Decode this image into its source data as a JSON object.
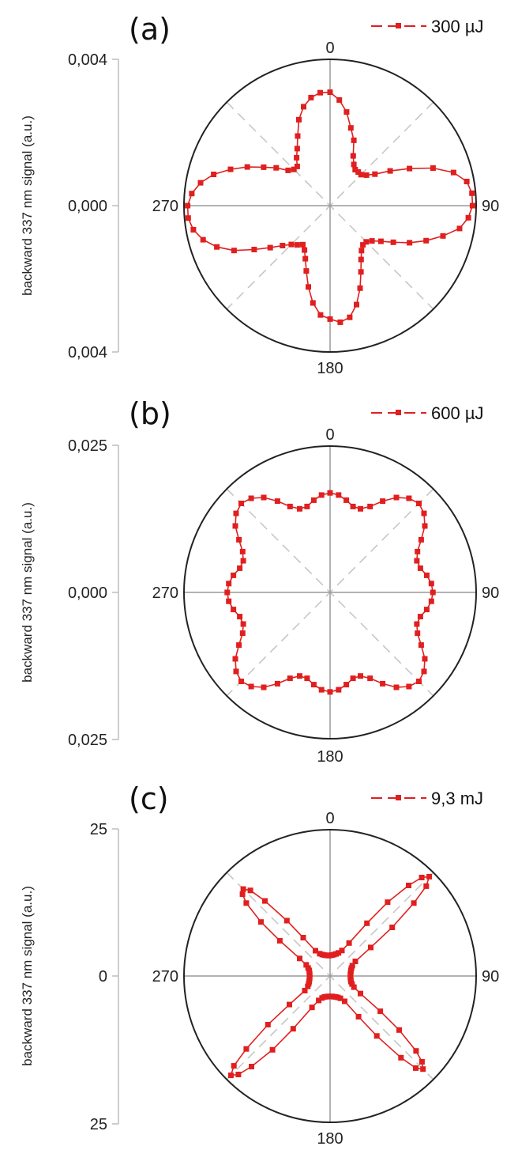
{
  "colors": {
    "series": "#e01f1f",
    "outer_circle": "#222222",
    "axis_cross": "#9a9a9a",
    "diagonal_dash": "#c4c4c4",
    "y_axis": "#bdbdbd"
  },
  "chart_data": [
    {
      "type": "polar-line",
      "panel": "(a)",
      "legend": "300 µJ",
      "angle_labels": [
        "0",
        "90",
        "180",
        "270"
      ],
      "ylabel": "backward 337 nm signal  (a.u.)",
      "yticks": [
        "0,004",
        "0,000",
        "0,004"
      ],
      "rmax": 0.004,
      "grid": true,
      "series": [
        {
          "name": "300 µJ",
          "theta_deg": [
            0,
            5,
            10,
            15,
            20,
            25,
            30,
            35,
            40,
            45,
            50,
            55,
            60,
            65,
            70,
            75,
            80,
            85,
            90,
            95,
            100,
            105,
            110,
            115,
            120,
            125,
            130,
            135,
            140,
            145,
            150,
            155,
            160,
            165,
            170,
            175,
            180,
            185,
            190,
            195,
            200,
            205,
            210,
            215,
            220,
            225,
            230,
            235,
            240,
            245,
            250,
            255,
            260,
            265,
            270,
            275,
            280,
            285,
            290,
            295,
            300,
            305,
            310,
            315,
            320,
            325,
            330,
            335,
            340,
            345,
            350,
            355
          ],
          "r": [
            0.0031,
            0.0029,
            0.0026,
            0.0022,
            0.0019,
            0.0015,
            0.0013,
            0.0012,
            0.0012,
            0.0012,
            0.0013,
            0.0015,
            0.0019,
            0.0024,
            0.003,
            0.0035,
            0.0038,
            0.0039,
            0.0039,
            0.0038,
            0.0036,
            0.0032,
            0.0028,
            0.0024,
            0.002,
            0.0017,
            0.0015,
            0.0014,
            0.0014,
            0.0015,
            0.0017,
            0.002,
            0.0024,
            0.0028,
            0.0031,
            0.0032,
            0.0031,
            0.003,
            0.0027,
            0.0023,
            0.0019,
            0.0016,
            0.0014,
            0.0013,
            0.0014,
            0.0015,
            0.0017,
            0.002,
            0.0024,
            0.0029,
            0.0033,
            0.0036,
            0.0038,
            0.0039,
            0.0039,
            0.0038,
            0.0036,
            0.0033,
            0.0029,
            0.0025,
            0.0021,
            0.0018,
            0.0015,
            0.0014,
            0.0014,
            0.0016,
            0.0018,
            0.0021,
            0.0025,
            0.0028,
            0.003,
            0.0031
          ]
        }
      ]
    },
    {
      "type": "polar-line",
      "panel": "(b)",
      "legend": "600 µJ",
      "angle_labels": [
        "0",
        "90",
        "180",
        "270"
      ],
      "ylabel": "backward 337 nm signal  (a.u.)",
      "yticks": [
        "0,025",
        "0,000",
        "0,025"
      ],
      "rmax": 0.025,
      "grid": true,
      "series": [
        {
          "name": "600 µJ",
          "theta_deg": [
            0,
            5,
            10,
            15,
            20,
            25,
            30,
            35,
            40,
            45,
            50,
            55,
            60,
            65,
            70,
            75,
            80,
            85,
            90,
            95,
            100,
            105,
            110,
            115,
            120,
            125,
            130,
            135,
            140,
            145,
            150,
            155,
            160,
            165,
            170,
            175,
            180,
            185,
            190,
            195,
            200,
            205,
            210,
            215,
            220,
            225,
            230,
            235,
            240,
            245,
            250,
            255,
            260,
            265,
            270,
            275,
            280,
            285,
            290,
            295,
            300,
            305,
            310,
            315,
            320,
            325,
            330,
            335,
            340,
            345,
            350,
            355
          ],
          "r": [
            0.017,
            0.0167,
            0.016,
            0.0152,
            0.0152,
            0.0162,
            0.018,
            0.0198,
            0.021,
            0.0215,
            0.021,
            0.0198,
            0.018,
            0.0165,
            0.0158,
            0.016,
            0.0168,
            0.0174,
            0.0176,
            0.0174,
            0.0168,
            0.016,
            0.0158,
            0.0165,
            0.018,
            0.0198,
            0.021,
            0.0215,
            0.021,
            0.0198,
            0.018,
            0.0162,
            0.0152,
            0.0152,
            0.016,
            0.0167,
            0.017,
            0.0167,
            0.016,
            0.0152,
            0.0152,
            0.0162,
            0.018,
            0.0198,
            0.021,
            0.0215,
            0.021,
            0.0198,
            0.018,
            0.0165,
            0.0158,
            0.016,
            0.0168,
            0.0174,
            0.0176,
            0.0174,
            0.0168,
            0.016,
            0.0158,
            0.0165,
            0.018,
            0.0198,
            0.021,
            0.0215,
            0.021,
            0.0198,
            0.018,
            0.0162,
            0.0152,
            0.0152,
            0.016,
            0.0167
          ]
        }
      ]
    },
    {
      "type": "polar-line",
      "panel": "(c)",
      "legend": "9,3 mJ",
      "angle_labels": [
        "0",
        "90",
        "180",
        "270"
      ],
      "ylabel": "backward 337 nm signal  (a.u.)",
      "yticks": [
        "25",
        "0",
        "25"
      ],
      "rmax": 25,
      "grid": true,
      "series": [
        {
          "name": "9,3 mJ",
          "theta_deg": [
            0,
            5,
            10,
            15,
            20,
            25,
            30,
            35,
            38,
            41,
            43,
            45,
            47,
            49,
            52,
            55,
            60,
            65,
            70,
            75,
            80,
            85,
            90,
            95,
            100,
            105,
            110,
            115,
            120,
            125,
            128,
            131,
            133,
            135,
            137,
            139,
            142,
            145,
            150,
            155,
            160,
            165,
            170,
            175,
            180,
            185,
            190,
            195,
            200,
            205,
            210,
            215,
            218,
            221,
            223,
            225,
            227,
            229,
            232,
            235,
            240,
            245,
            250,
            255,
            260,
            265,
            270,
            275,
            280,
            285,
            290,
            295,
            300,
            305,
            308,
            311,
            313,
            315,
            317,
            319,
            322,
            325,
            330,
            335,
            340,
            345,
            350,
            355
          ],
          "r": [
            3.5,
            3.6,
            3.7,
            3.9,
            4.2,
            4.8,
            6.5,
            11.0,
            16.0,
            20.5,
            23.0,
            24.0,
            22.5,
            19.0,
            13.5,
            8.5,
            5.0,
            4.2,
            3.9,
            3.7,
            3.6,
            3.5,
            3.5,
            3.5,
            3.6,
            3.7,
            4.0,
            4.5,
            6.0,
            10.5,
            15.0,
            19.5,
            21.5,
            22.5,
            21.5,
            18.5,
            13.0,
            8.5,
            5.0,
            4.2,
            3.9,
            3.7,
            3.6,
            3.5,
            3.5,
            3.5,
            3.6,
            3.7,
            4.0,
            4.6,
            6.2,
            11.0,
            16.0,
            20.5,
            23.0,
            24.0,
            22.5,
            19.0,
            13.5,
            8.5,
            5.0,
            4.2,
            3.9,
            3.7,
            3.6,
            3.5,
            3.5,
            3.5,
            3.6,
            3.7,
            4.0,
            4.5,
            6.0,
            10.5,
            15.0,
            19.0,
            20.5,
            21.0,
            20.0,
            17.0,
            12.0,
            8.0,
            5.0,
            4.2,
            3.9,
            3.7,
            3.6,
            3.5
          ]
        }
      ]
    }
  ]
}
